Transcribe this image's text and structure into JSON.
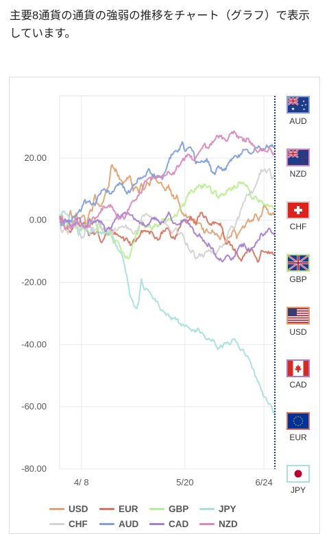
{
  "intro_text": "主要8通貨の通貨の強弱の推移をチャート（グラフ）で表示しています。",
  "chart_data": {
    "type": "line",
    "ylim": [
      -80,
      40
    ],
    "yticks": [
      20,
      0,
      -20,
      -40,
      -60,
      -80
    ],
    "ytick_labels": [
      "20.00",
      "0.00",
      "-20.00",
      "-40.00",
      "-60.00",
      "-80.00"
    ],
    "x_count": 80,
    "xticks": [
      {
        "index": 8,
        "label": "4/ 8"
      },
      {
        "index": 46,
        "label": "5/20"
      },
      {
        "index": 75,
        "label": "6/24"
      }
    ],
    "series": [
      {
        "name": "USD",
        "color": "#e3a271",
        "values": [
          1.1,
          1.5,
          -2.9,
          -1.9,
          3.1,
          -1.6,
          2.2,
          -1.2,
          0.9,
          1.5,
          -1.9,
          2.8,
          3,
          8.3,
          5.2,
          4.6,
          5.9,
          9.6,
          10.7,
          17.7,
          16.7,
          15.4,
          13.1,
          12.3,
          12.6,
          13.3,
          14,
          9.4,
          10.8,
          8.9,
          11.8,
          9.8,
          12.2,
          11.1,
          14.8,
          14.2,
          12.2,
          12.2,
          10.7,
          9.6,
          11.3,
          8.5,
          7,
          8.1,
          5.2,
          2.1,
          1.5,
          0.9,
          0.3,
          0.1,
          -0.5,
          -0.9,
          -1.5,
          -4.1,
          -2.8,
          -4.1,
          -3.1,
          -4.7,
          -5.1,
          -6.2,
          -3.8,
          -7.4,
          -5.6,
          -5.2,
          -2.4,
          -5.9,
          -3.9,
          -2.3,
          -2.2,
          -0.1,
          -0.3,
          -0.2,
          2,
          -0.2,
          1.2,
          5,
          3.5,
          1.8,
          2.1,
          2.2
        ]
      },
      {
        "name": "EUR",
        "color": "#d9735f",
        "values": [
          0.3,
          -0.5,
          -2.5,
          -2.7,
          -3.9,
          -2.3,
          -0.7,
          -1.1,
          -2.3,
          -0.7,
          -3.5,
          -4.9,
          -4.2,
          -4.4,
          -3.2,
          -6.8,
          -6.3,
          -4.5,
          -4.6,
          -3.1,
          -4.5,
          -4.4,
          -5.2,
          -5.6,
          -6.3,
          -6.5,
          -8.1,
          -6.6,
          -6.8,
          -5.4,
          -3.3,
          -3.5,
          -3.5,
          -4.4,
          -3.9,
          -5.9,
          -6.4,
          -5.1,
          -3.3,
          -2.8,
          -3,
          -5.6,
          -5.8,
          -4.9,
          -2.4,
          -0.6,
          -0.2,
          -0.4,
          1.2,
          0.2,
          -1.4,
          1.3,
          2.4,
          0.8,
          0.4,
          -1.4,
          -0.9,
          -0.6,
          -1.1,
          -1,
          -3.9,
          -7.7,
          -6.7,
          -8,
          -9.6,
          -10.3,
          -12.3,
          -12.6,
          -10.8,
          -9.6,
          -9.8,
          -10,
          -11.9,
          -13.3,
          -9.8,
          -10.2,
          -10.3,
          -10.7,
          -10.3,
          -11.1
        ]
      },
      {
        "name": "GBP",
        "color": "#b7ef8f",
        "values": [
          0.4,
          -1.8,
          -2.4,
          -1.1,
          -1.8,
          -1.2,
          -2.4,
          -2.7,
          -3.4,
          -1.3,
          -3.3,
          -0.6,
          -1.6,
          0.8,
          -3.6,
          -1,
          -4.2,
          -3.5,
          -3.5,
          -5.3,
          -7.5,
          -6.5,
          -8.1,
          -10.1,
          -12,
          -12.3,
          -10.7,
          -7.4,
          -4.9,
          -3.3,
          0,
          -1.6,
          -2.2,
          -1.3,
          -3.1,
          -1.2,
          -2.1,
          -1.1,
          0.3,
          -0.5,
          0.5,
          0.2,
          1.1,
          1.3,
          3.7,
          4.6,
          5.4,
          7.7,
          9.5,
          9,
          9.9,
          11.3,
          10.2,
          11.6,
          10.7,
          11,
          8.7,
          9.4,
          7.6,
          7.8,
          8,
          8.5,
          10.1,
          9.6,
          11.2,
          10.4,
          12.3,
          11.8,
          11.5,
          10.7,
          8.1,
          7,
          7.7,
          5.8,
          6.3,
          4.9,
          4.9,
          4.4,
          4.6,
          2.8
        ]
      },
      {
        "name": "JPY",
        "color": "#a8e0dc",
        "values": [
          0.8,
          2.9,
          2.2,
          1.5,
          -0.6,
          -0.3,
          -0.7,
          -4.9,
          -1.7,
          -3,
          -3.1,
          -4.7,
          -2.4,
          -3.9,
          -4.5,
          -3.7,
          -4,
          -3.4,
          -4.3,
          -4.1,
          -6.6,
          -8.3,
          -10,
          -11.3,
          -15.2,
          -19.9,
          -24.5,
          -26.5,
          -28.4,
          -26.7,
          -18.9,
          -22.3,
          -22.1,
          -23,
          -24.7,
          -25.2,
          -26.2,
          -28.8,
          -29.2,
          -30.6,
          -30.4,
          -32,
          -31.6,
          -31.8,
          -33.3,
          -33.6,
          -34.1,
          -34.3,
          -34.9,
          -35.2,
          -35.4,
          -34.9,
          -36.1,
          -37,
          -38.1,
          -38.2,
          -38.3,
          -39.6,
          -41.6,
          -40.4,
          -40.3,
          -39.6,
          -39.6,
          -39.1,
          -38.3,
          -39.2,
          -41.2,
          -41.6,
          -42.9,
          -43.7,
          -45.7,
          -47.8,
          -50.3,
          -51.9,
          -54.7,
          -56.9,
          -57.8,
          -58.9,
          -60.5,
          -62.9
        ]
      },
      {
        "name": "CHF",
        "color": "#d3d3d3",
        "values": [
          -1.2,
          -4,
          -1.7,
          -4.3,
          -1,
          -2.2,
          -1.4,
          -3.3,
          -5.9,
          -5.2,
          -1.2,
          -1.6,
          -3.5,
          -3.1,
          -1.3,
          -1.9,
          -3.2,
          -2.5,
          -3.1,
          -4.4,
          -2.9,
          -3.3,
          -2.3,
          -1.9,
          -1.9,
          -2.2,
          -2.9,
          -4.3,
          -3.4,
          -2.2,
          0.5,
          1.3,
          1.8,
          1.1,
          0.4,
          1,
          0.1,
          -0.6,
          -0.4,
          -1.2,
          -1.9,
          -3.9,
          -3.3,
          -3.1,
          -4.4,
          -4.4,
          -7.1,
          -7.9,
          -10.3,
          -9.8,
          -12.4,
          -11.3,
          -11,
          -11.4,
          -9.8,
          -9.8,
          -10,
          -11.1,
          -9.7,
          -8.4,
          -7.8,
          -6.5,
          -3.4,
          -1.9,
          -2.9,
          -0.3,
          1.5,
          4.3,
          6.3,
          8.2,
          8.6,
          9.1,
          11.3,
          13.4,
          16.3,
          16.2,
          15.2,
          16.6,
          13.3,
          14.1
        ]
      },
      {
        "name": "AUD",
        "color": "#7f9edf",
        "values": [
          -0.8,
          -1.2,
          -0.7,
          -0.4,
          -0.4,
          1.3,
          1.3,
          2.7,
          3.4,
          6.2,
          5.8,
          6.3,
          5.1,
          4.7,
          7.7,
          8.4,
          9.8,
          9.4,
          9.4,
          8.5,
          9.5,
          11.1,
          12.1,
          11.9,
          9.5,
          8.9,
          9.3,
          11.5,
          11.7,
          13.6,
          13.4,
          14.2,
          15.4,
          16.2,
          14.7,
          14,
          13.9,
          13.7,
          13.7,
          16.1,
          18.7,
          21.2,
          21.9,
          22.2,
          22.6,
          25.2,
          22.2,
          23.1,
          23.5,
          22.3,
          18.2,
          18.6,
          19.1,
          18.6,
          19.8,
          17.7,
          15.6,
          14.7,
          17.1,
          16.7,
          16.4,
          16.2,
          18.5,
          19.1,
          20.5,
          20.5,
          20.4,
          21.8,
          22.6,
          22.6,
          21.4,
          21.8,
          23.4,
          23.9,
          23,
          22.9,
          24.2,
          23.7,
          24.3,
          23.6
        ]
      },
      {
        "name": "CAD",
        "color": "#a57cd7",
        "values": [
          1.4,
          -0.5,
          0.4,
          0,
          -1.6,
          -1.7,
          -0.8,
          0.7,
          -1.1,
          -1.9,
          -2.2,
          0.5,
          -1.2,
          -0.2,
          0.2,
          -0.8,
          -1.3,
          -3.6,
          -2.3,
          -2.6,
          -0.6,
          1.5,
          1.1,
          1.5,
          2.6,
          2.5,
          1.6,
          0.9,
          0.1,
          -0.2,
          -0.8,
          -1.6,
          -1.8,
          -0.8,
          0.7,
          0.3,
          0.2,
          -1.4,
          -0.7,
          0.7,
          2.6,
          0.3,
          -0.9,
          -1.4,
          -1.1,
          -0.6,
          0.2,
          -0.1,
          -2.1,
          -2.9,
          -4.6,
          -4.8,
          -5.4,
          -6.5,
          -8.1,
          -8,
          -8.9,
          -10.7,
          -12.4,
          -12.3,
          -13.1,
          -11.6,
          -11.5,
          -12.8,
          -11.7,
          -10.2,
          -8.3,
          -7.7,
          -8.1,
          -9.7,
          -9.6,
          -8.7,
          -7.2,
          -6.4,
          -4.2,
          -4.5,
          -3.9,
          -2.6,
          -4.2,
          -4.5
        ]
      },
      {
        "name": "NZD",
        "color": "#de86bc",
        "values": [
          0.6,
          -0.9,
          -2.6,
          -1.8,
          -2.6,
          -1.6,
          0.7,
          -1.5,
          -1.4,
          -2,
          -2.1,
          -2.2,
          0.7,
          0.4,
          1.1,
          2.4,
          4.5,
          4.1,
          4.8,
          4.3,
          3.1,
          1.3,
          0.8,
          1.2,
          0.7,
          3.4,
          4.7,
          6.3,
          6.5,
          7.9,
          8.7,
          11.9,
          12.9,
          13.7,
          13.4,
          13.4,
          14.4,
          14,
          14.6,
          14.5,
          15.6,
          14.6,
          14.8,
          17.4,
          17.7,
          19.2,
          19.9,
          21.2,
          20.3,
          19.4,
          20,
          21.6,
          22.9,
          24.3,
          23.5,
          23.8,
          25.3,
          25.8,
          27.1,
          26.9,
          26.5,
          25.5,
          26.6,
          27.9,
          28.7,
          26.8,
          26.8,
          26.5,
          25.3,
          26.2,
          25.3,
          24,
          22.7,
          22.1,
          22.4,
          22.5,
          22.1,
          23.4,
          21.7,
          21.4
        ]
      }
    ]
  },
  "flags": [
    {
      "code": "AUD",
      "border": "#8ba3db"
    },
    {
      "code": "NZD",
      "border": "#de86bc"
    },
    {
      "code": "CHF",
      "border": "#cfcfcf"
    },
    {
      "code": "GBP",
      "border": "#b7ef8f"
    },
    {
      "code": "USD",
      "border": "#e3a271"
    },
    {
      "code": "CAD",
      "border": "#a57cd7"
    },
    {
      "code": "EUR",
      "border": "#d9735f"
    },
    {
      "code": "JPY",
      "border": "#a8e0dc"
    }
  ],
  "legend": [
    {
      "name": "USD",
      "color": "#e3a271"
    },
    {
      "name": "EUR",
      "color": "#d9735f"
    },
    {
      "name": "GBP",
      "color": "#b7ef8f"
    },
    {
      "name": "JPY",
      "color": "#a8e0dc"
    },
    {
      "name": "CHF",
      "color": "#d3d3d3"
    },
    {
      "name": "AUD",
      "color": "#7f9edf"
    },
    {
      "name": "CAD",
      "color": "#a57cd7"
    },
    {
      "name": "NZD",
      "color": "#de86bc"
    }
  ],
  "icon_names": [
    "australia-flag-icon",
    "new-zealand-flag-icon",
    "switzerland-flag-icon",
    "uk-flag-icon",
    "us-flag-icon",
    "canada-flag-icon",
    "eu-flag-icon",
    "japan-flag-icon"
  ]
}
